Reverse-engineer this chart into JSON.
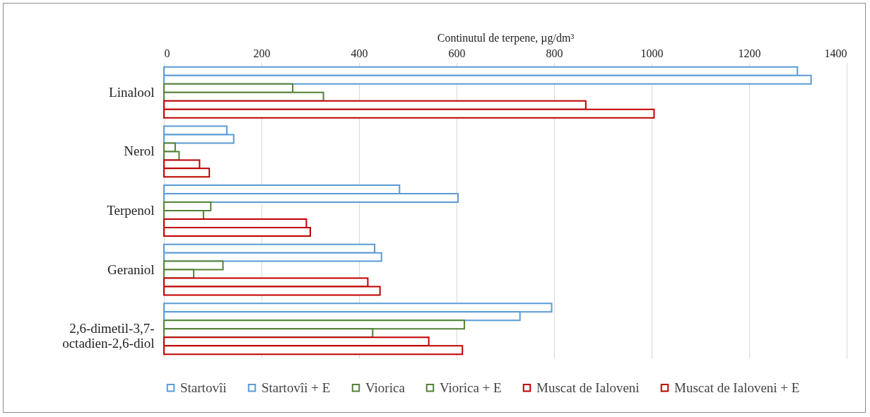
{
  "chart_data": {
    "type": "bar",
    "orientation": "horizontal",
    "xlabel": "Continutul de terpene, µg/dm³",
    "categories": [
      "Linalool",
      "Nerol",
      "Terpenol",
      "Geraniol",
      "2,6-dimetil-3,7-octadien-2,6-diol"
    ],
    "series": [
      {
        "name": "Startovîi",
        "color": "#5b9bd5",
        "values": [
          1299,
          129,
          483,
          432,
          795
        ]
      },
      {
        "name": "Startovîi + E",
        "color": "#5b9bd5",
        "values": [
          1327,
          143,
          603,
          446,
          730
        ]
      },
      {
        "name": "Viorica",
        "color": "#548235",
        "values": [
          264,
          23,
          96,
          121,
          616
        ]
      },
      {
        "name": "Viorica + E",
        "color": "#548235",
        "values": [
          327,
          31,
          81,
          61,
          428
        ]
      },
      {
        "name": "Muscat de Ialoveni",
        "color": "#c00000",
        "values": [
          865,
          73,
          292,
          418,
          543
        ]
      },
      {
        "name": "Muscat de Ialoveni + E",
        "color": "#c00000",
        "values": [
          1005,
          93,
          300,
          443,
          612
        ]
      }
    ],
    "xlim": [
      0,
      1400
    ],
    "xticks": [
      0,
      200,
      400,
      600,
      800,
      {
        "value": 1000,
        "label": "1000"
      },
      {
        "value": 1200,
        "label": "1200"
      },
      {
        "value": 1400,
        "label": "1400"
      }
    ],
    "grid": true,
    "legend": "bottom"
  }
}
